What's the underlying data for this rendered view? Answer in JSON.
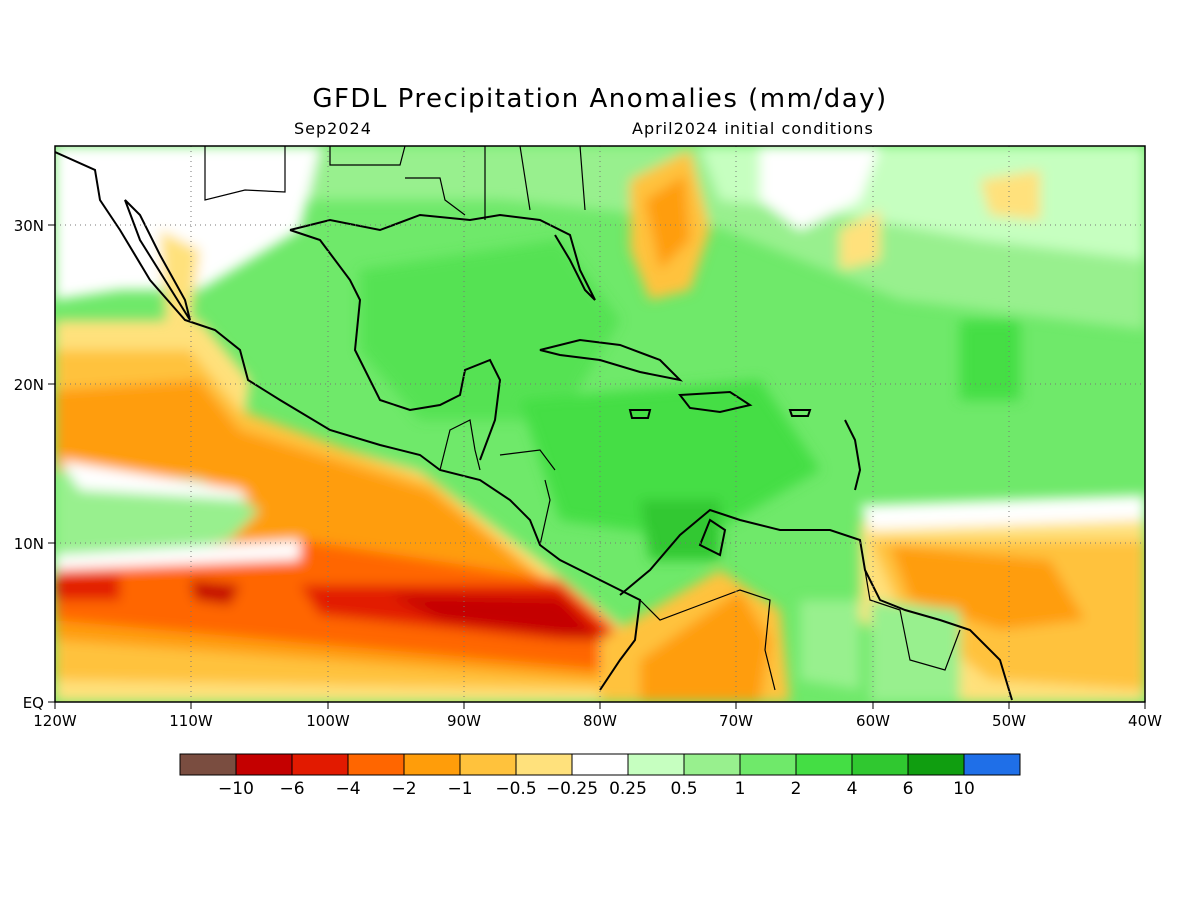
{
  "title": "GFDL Precipitation Anomalies (mm/day)",
  "subtitle_left": "Sep2024",
  "subtitle_right": "April2024 initial conditions",
  "map": {
    "lon_range": [
      -120,
      -40
    ],
    "lat_range": [
      0,
      35
    ],
    "x_ticks": [
      "120W",
      "110W",
      "100W",
      "90W",
      "80W",
      "70W",
      "60W",
      "50W",
      "40W"
    ],
    "y_ticks": [
      "EQ",
      "10N",
      "20N",
      "30N"
    ],
    "grid": "dotted"
  },
  "colorbar": {
    "colors": [
      "#7a4d40",
      "#c40000",
      "#e21a00",
      "#ff6600",
      "#ff9d0a",
      "#ffc23c",
      "#ffe17c",
      "#ffffff",
      "#c6ffc0",
      "#98f08e",
      "#6fe96a",
      "#44de44",
      "#30c830",
      "#109e10",
      "#1f6fe8"
    ],
    "labels": [
      "-10",
      "-6",
      "-4",
      "-2",
      "-1",
      "-0.5",
      "-0.25",
      "0.25",
      "0.5",
      "1",
      "2",
      "4",
      "6",
      "10"
    ]
  }
}
